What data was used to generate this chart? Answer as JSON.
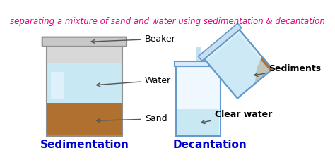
{
  "title": "separating a mixture of sand and water using sedimentation & decantation",
  "title_color": "#e6007e",
  "title_fontsize": 8.5,
  "bg_color": "#ffffff",
  "label_beaker": "Beaker",
  "label_water": "Water",
  "label_sand": "Sand",
  "label_sedimentation": "Sedimentation",
  "label_decantation": "Decantation",
  "label_sediments": "Sediments",
  "label_clear_water": "Clear water",
  "sand_color": "#b07030",
  "water_light": "#c8e8f4",
  "water_mid": "#a8d8f0",
  "beaker_gray_top": "#c8c8c8",
  "beaker_gray_side_l": "#d0d0d0",
  "beaker_gray_side_r": "#b8b8b8",
  "beaker_edge": "#909090",
  "decant_beaker_edge": "#6699cc",
  "decant_beaker_fill": "#f0f8ff",
  "arrow_color": "#555555",
  "label_fontsize": 9,
  "title_bold": false
}
